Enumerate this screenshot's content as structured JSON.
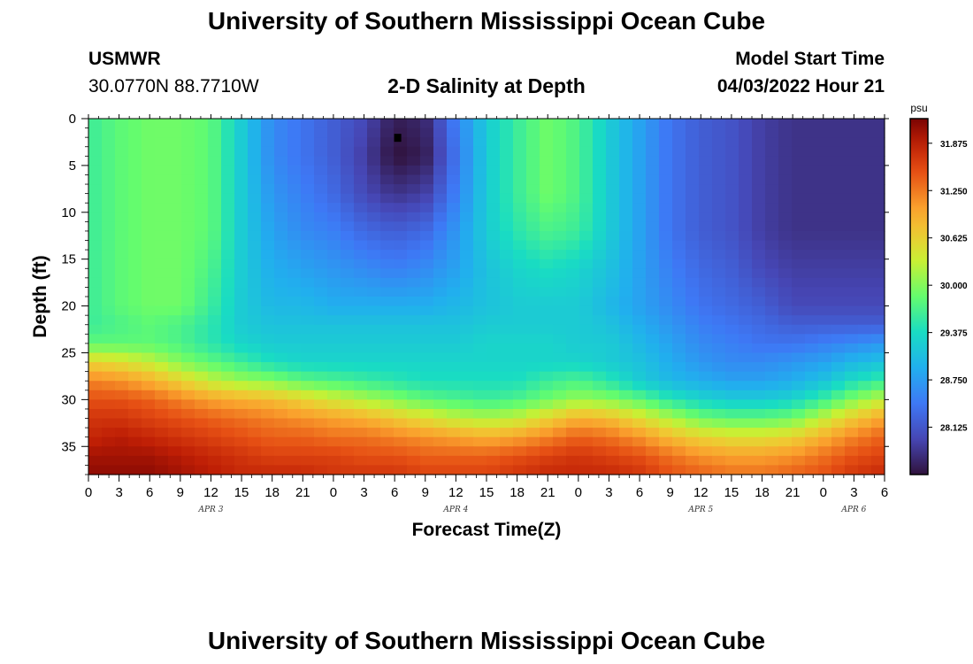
{
  "header": {
    "title": "University of Southern Mississippi Ocean Cube",
    "station_name": "USMWR",
    "station_coords": "30.0770N  88.7710W",
    "plot_title": "2-D Salinity at Depth",
    "model_label": "Model Start Time",
    "model_time": "04/03/2022 Hour 21"
  },
  "footer": {
    "title": "University of Southern Mississippi Ocean Cube"
  },
  "chart_data": {
    "type": "heatmap",
    "title": "2-D Salinity at Depth",
    "xlabel": "Forecast Time(Z)",
    "ylabel": "Depth (ft)",
    "x_start": "APR 3 00Z",
    "x_range_hours": [
      0,
      78
    ],
    "x_tick_labels": [
      "0",
      "3",
      "6",
      "9",
      "12",
      "15",
      "18",
      "21",
      "0",
      "3",
      "6",
      "9",
      "12",
      "15",
      "18",
      "21",
      "0",
      "3",
      "6",
      "9",
      "12",
      "15",
      "18",
      "21",
      "0",
      "3",
      "6"
    ],
    "date_labels": [
      {
        "label": "APR 3",
        "hour": 12
      },
      {
        "label": "APR 4",
        "hour": 36
      },
      {
        "label": "APR 5",
        "hour": 60
      },
      {
        "label": "APR 6",
        "hour": 75
      }
    ],
    "y_ticks": [
      0,
      5,
      10,
      15,
      20,
      25,
      30,
      35
    ],
    "y_tick_labels": [
      "0",
      "5",
      "10",
      "15",
      "20",
      "25",
      "30",
      "35"
    ],
    "ylim": [
      0,
      38
    ],
    "colorbar": {
      "unit": "psu",
      "range": [
        27.5,
        32.2
      ],
      "tick_values": [
        31.875,
        31.25,
        30.625,
        30.0,
        29.375,
        28.75,
        28.125
      ],
      "tick_labels": [
        "31.875",
        "31.250",
        "30.625",
        "30.000",
        "29.375",
        "28.750",
        "28.125"
      ]
    },
    "marker": {
      "hour": 30.3,
      "depth_ft": 2
    },
    "salinity_grid": {
      "x_hours": [
        0,
        3,
        6,
        9,
        12,
        15,
        18,
        21,
        24,
        27,
        30,
        33,
        36,
        39,
        42,
        45,
        48,
        51,
        54,
        57,
        60,
        63,
        66,
        69,
        72,
        75,
        78
      ],
      "depths_ft": [
        0,
        4,
        8,
        12,
        16,
        20,
        22,
        24,
        26,
        28,
        30,
        32,
        34,
        36,
        38
      ],
      "values": [
        [
          29.6,
          29.8,
          29.9,
          29.9,
          29.8,
          29.2,
          28.6,
          28.4,
          28.2,
          28.0,
          27.6,
          27.7,
          28.5,
          29.2,
          29.6,
          29.9,
          29.7,
          29.2,
          28.8,
          28.4,
          28.2,
          28.1,
          27.9,
          27.8,
          27.8,
          27.8,
          27.8
        ],
        [
          29.6,
          29.8,
          29.9,
          29.9,
          29.8,
          29.2,
          28.6,
          28.4,
          28.2,
          27.9,
          27.5,
          27.6,
          28.4,
          29.2,
          29.6,
          29.9,
          29.7,
          29.2,
          28.8,
          28.4,
          28.2,
          28.1,
          27.9,
          27.8,
          27.8,
          27.8,
          27.8
        ],
        [
          29.6,
          29.8,
          29.9,
          29.9,
          29.8,
          29.2,
          28.7,
          28.5,
          28.3,
          28.0,
          27.8,
          27.9,
          28.5,
          29.2,
          29.6,
          29.9,
          29.7,
          29.2,
          28.8,
          28.4,
          28.2,
          28.1,
          27.9,
          27.8,
          27.8,
          27.8,
          27.8
        ],
        [
          29.6,
          29.8,
          29.9,
          29.9,
          29.8,
          29.2,
          28.8,
          28.6,
          28.5,
          28.3,
          28.2,
          28.3,
          28.7,
          29.2,
          29.5,
          29.7,
          29.6,
          29.2,
          28.8,
          28.4,
          28.2,
          28.1,
          27.9,
          27.8,
          27.8,
          27.8,
          27.8
        ],
        [
          29.6,
          29.8,
          29.9,
          29.9,
          29.7,
          29.2,
          28.9,
          28.8,
          28.7,
          28.6,
          28.5,
          28.6,
          28.8,
          29.1,
          29.3,
          29.4,
          29.3,
          29.1,
          28.8,
          28.5,
          28.3,
          28.2,
          28.0,
          27.9,
          27.9,
          27.9,
          27.9
        ],
        [
          29.6,
          29.8,
          29.9,
          29.9,
          29.6,
          29.2,
          29.0,
          29.0,
          28.9,
          28.9,
          28.9,
          28.9,
          29.0,
          29.1,
          29.2,
          29.2,
          29.2,
          29.0,
          28.8,
          28.6,
          28.4,
          28.3,
          28.2,
          28.0,
          28.0,
          28.0,
          28.0
        ],
        [
          29.6,
          29.7,
          29.8,
          29.7,
          29.5,
          29.2,
          29.1,
          29.1,
          29.1,
          29.1,
          29.1,
          29.1,
          29.1,
          29.2,
          29.2,
          29.2,
          29.2,
          29.1,
          28.9,
          28.7,
          28.5,
          28.4,
          28.3,
          28.2,
          28.2,
          28.2,
          28.2
        ],
        [
          29.8,
          29.8,
          29.8,
          29.7,
          29.5,
          29.3,
          29.2,
          29.2,
          29.2,
          29.2,
          29.2,
          29.2,
          29.2,
          29.3,
          29.3,
          29.3,
          29.2,
          29.2,
          29.0,
          28.8,
          28.6,
          28.5,
          28.4,
          28.4,
          28.5,
          28.6,
          28.7
        ],
        [
          30.6,
          30.5,
          30.3,
          30.0,
          29.8,
          29.6,
          29.4,
          29.3,
          29.3,
          29.3,
          29.3,
          29.3,
          29.3,
          29.3,
          29.3,
          29.3,
          29.3,
          29.2,
          29.1,
          28.9,
          28.7,
          28.6,
          28.6,
          28.7,
          28.8,
          29.0,
          29.1
        ],
        [
          31.2,
          31.1,
          30.9,
          30.6,
          30.3,
          30.1,
          30.0,
          29.8,
          29.7,
          29.6,
          29.5,
          29.4,
          29.4,
          29.4,
          29.4,
          29.6,
          29.7,
          29.5,
          29.2,
          29.0,
          28.9,
          28.8,
          28.8,
          28.9,
          29.1,
          29.4,
          29.6
        ],
        [
          31.5,
          31.5,
          31.4,
          31.2,
          31.0,
          30.9,
          30.8,
          30.6,
          30.4,
          30.2,
          30.0,
          29.8,
          29.7,
          29.6,
          29.7,
          29.9,
          30.1,
          30.0,
          29.8,
          29.5,
          29.3,
          29.2,
          29.2,
          29.3,
          29.6,
          30.0,
          30.3
        ],
        [
          31.7,
          31.7,
          31.6,
          31.5,
          31.4,
          31.3,
          31.2,
          31.1,
          31.0,
          30.9,
          30.7,
          30.5,
          30.3,
          30.2,
          30.3,
          30.6,
          30.9,
          30.8,
          30.5,
          30.2,
          29.9,
          29.8,
          29.8,
          29.9,
          30.3,
          30.7,
          31.0
        ],
        [
          31.8,
          31.9,
          31.8,
          31.7,
          31.6,
          31.5,
          31.4,
          31.4,
          31.3,
          31.3,
          31.2,
          31.1,
          31.0,
          30.9,
          31.0,
          31.2,
          31.4,
          31.3,
          31.1,
          30.8,
          30.6,
          30.5,
          30.5,
          30.6,
          30.9,
          31.2,
          31.4
        ],
        [
          32.0,
          32.0,
          32.0,
          31.9,
          31.8,
          31.7,
          31.6,
          31.6,
          31.6,
          31.5,
          31.5,
          31.4,
          31.4,
          31.4,
          31.5,
          31.6,
          31.7,
          31.6,
          31.5,
          31.3,
          31.1,
          31.0,
          31.0,
          31.1,
          31.3,
          31.5,
          31.6
        ],
        [
          32.1,
          32.1,
          32.1,
          32.0,
          31.9,
          31.8,
          31.8,
          31.8,
          31.7,
          31.7,
          31.7,
          31.6,
          31.6,
          31.6,
          31.7,
          31.8,
          31.8,
          31.8,
          31.7,
          31.5,
          31.4,
          31.3,
          31.3,
          31.4,
          31.5,
          31.7,
          31.8
        ]
      ]
    }
  }
}
